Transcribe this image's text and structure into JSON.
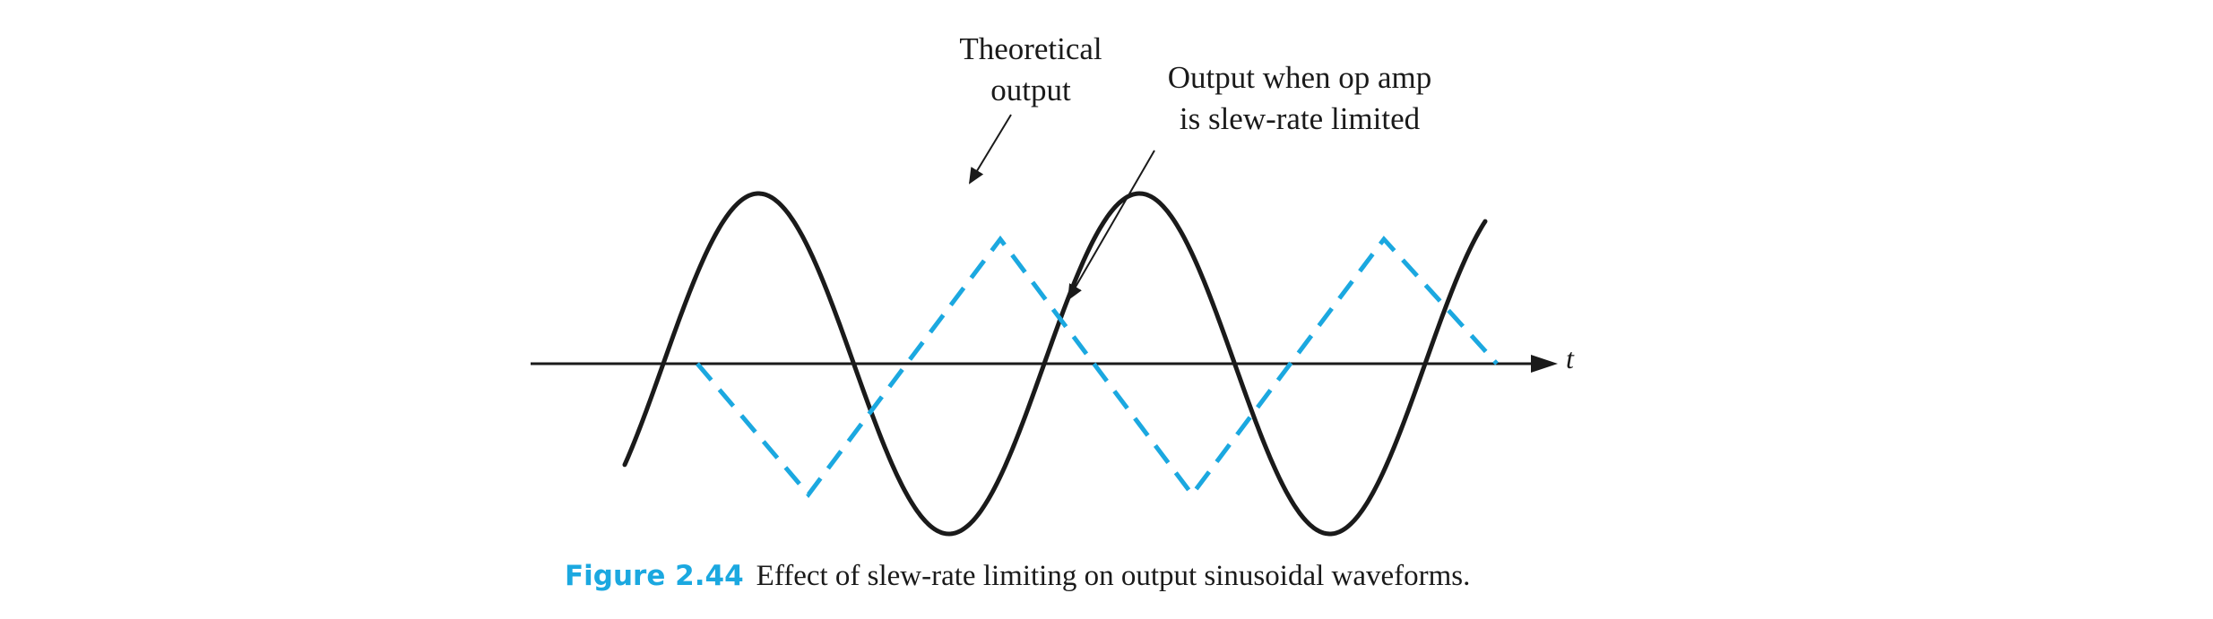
{
  "labels": {
    "theoretical_line1": "Theoretical",
    "theoretical_line2": "output",
    "slew_line1": "Output when op amp",
    "slew_line2": "is slew-rate limited",
    "time_axis": "t"
  },
  "caption": {
    "number": "Figure 2.44",
    "text": "Effect of slew-rate limiting on output sinusoidal waveforms."
  },
  "colors": {
    "theoretical": "#1a1a1a",
    "slew_limited": "#1ba8e0",
    "caption_number": "#1ba8e0"
  }
}
